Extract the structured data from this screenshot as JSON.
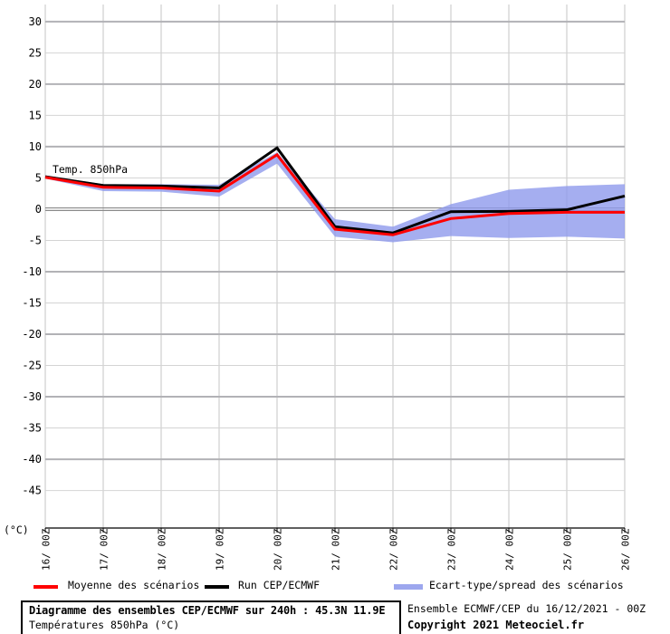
{
  "chart": {
    "annotation": "Temp. 850hPa",
    "unit_label": "(°C)",
    "y_ticks": [
      30,
      25,
      20,
      15,
      10,
      5,
      0,
      -5,
      -10,
      -15,
      -20,
      -25,
      -30,
      -35,
      -40,
      -45
    ],
    "colors": {
      "grid_vertical": "#c4c4c4",
      "grid_major": "#b2b2b6",
      "grid_minor": "#d4d4d4",
      "zero_line": "#8a8a8a",
      "axis": "#000000",
      "run_line": "#000000",
      "mean_line": "#ff0000",
      "spread_band": "#8f9aec"
    }
  },
  "chart_data": {
    "type": "line",
    "title": "Diagramme des ensembles CEP/ECMWF sur 240h : 45.3N 11.9E",
    "subtitle": "Températures 850hPa (°C)",
    "ylabel": "(°C)",
    "ylim": [
      -51,
      32.3
    ],
    "grid": true,
    "legend_position": "bottom",
    "categories": [
      "16/ 00Z",
      "17/ 00Z",
      "18/ 00Z",
      "19/ 00Z",
      "20/ 00Z",
      "21/ 00Z",
      "22/ 00Z",
      "23/ 00Z",
      "24/ 00Z",
      "25/ 00Z",
      "26/ 00Z"
    ],
    "series": [
      {
        "name": "Run CEP/ECMWF",
        "color": "#000000",
        "values": [
          5.2,
          3.8,
          3.7,
          3.4,
          9.8,
          -2.8,
          -3.8,
          -0.4,
          -0.35,
          -0.1,
          2.1
        ]
      },
      {
        "name": "Moyenne des scénarios",
        "color": "#ff0000",
        "values": [
          5.1,
          3.5,
          3.4,
          2.9,
          8.7,
          -3.2,
          -4.1,
          -1.5,
          -0.7,
          -0.5,
          -0.5
        ]
      }
    ],
    "band": {
      "name": "Ecart-type/spread des scénarios",
      "color": "#9da7ee",
      "upper": [
        5.4,
        4.0,
        4.0,
        3.9,
        9.1,
        -1.6,
        -2.8,
        0.8,
        3.1,
        3.7,
        4.0
      ],
      "lower": [
        4.9,
        2.9,
        2.8,
        2.0,
        7.3,
        -4.4,
        -5.3,
        -4.3,
        -4.6,
        -4.4,
        -4.7
      ]
    }
  },
  "legend": {
    "items": [
      {
        "label": "Moyenne des scénarios",
        "color": "#ff0000",
        "swatch": "line"
      },
      {
        "label": "Run CEP/ECMWF",
        "color": "#000000",
        "swatch": "line"
      },
      {
        "label": "Ecart-type/spread des scénarios",
        "color": "#9da7ee",
        "swatch": "band"
      }
    ]
  },
  "footer": {
    "title": "Diagramme des ensembles CEP/ECMWF sur 240h : 45.3N 11.9E",
    "subtitle": "Températures 850hPa (°C)",
    "run_info": "Ensemble ECMWF/CEP du 16/12/2021 - 00Z",
    "copyright": "Copyright 2021 Meteociel.fr"
  }
}
